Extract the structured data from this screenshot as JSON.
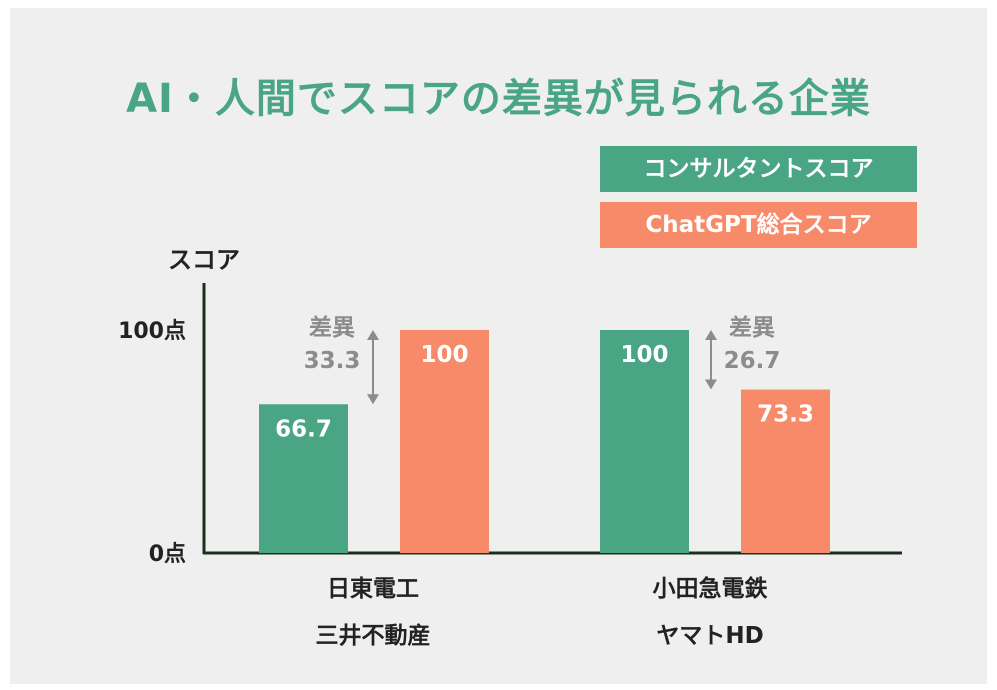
{
  "title": "AI・人間でスコアの差異が見られる企業",
  "legend": [
    {
      "label": "コンサルタントスコア",
      "color": "#4aa584"
    },
    {
      "label": "ChatGPT総合スコア",
      "color": "#f78a68"
    }
  ],
  "chart_data": {
    "type": "bar",
    "ylabel": "スコア",
    "ylim": [
      0,
      100
    ],
    "yticks": [
      {
        "value": 0,
        "label": "0点"
      },
      {
        "value": 100,
        "label": "100点"
      }
    ],
    "categories": [
      {
        "line1": "日東電工",
        "line2": "三井不動産"
      },
      {
        "line1": "小田急電鉄",
        "line2": "ヤマトHD"
      }
    ],
    "series": [
      {
        "name": "コンサルタントスコア",
        "color": "#4aa584",
        "values": [
          66.7,
          100
        ],
        "labels": [
          "66.7",
          "100"
        ]
      },
      {
        "name": "ChatGPT総合スコア",
        "color": "#f78a68",
        "values": [
          100,
          73.3
        ],
        "labels": [
          "100",
          "73.3"
        ]
      }
    ],
    "annotations": [
      {
        "label": "差異",
        "value": "33.3"
      },
      {
        "label": "差異",
        "value": "26.7"
      }
    ],
    "annotation_color": "#8c8c8c",
    "grid": false
  }
}
